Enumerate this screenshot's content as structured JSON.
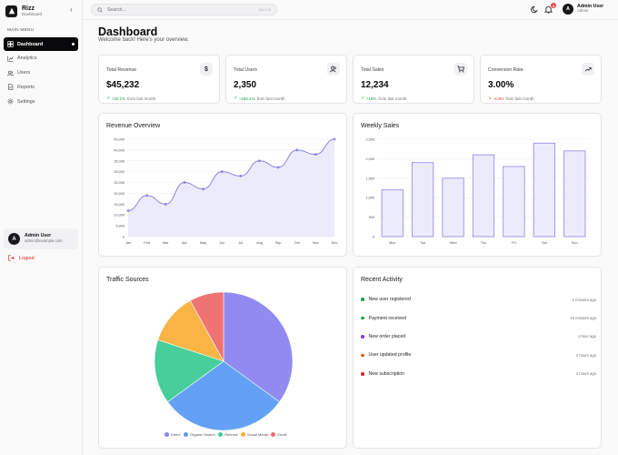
{
  "brand": {
    "name": "Rizz",
    "subtitle": "Dashboard"
  },
  "sidebar": {
    "section_label": "MAIN MENU",
    "items": [
      {
        "label": "Dashboard",
        "icon": "dashboard-icon",
        "active": true
      },
      {
        "label": "Analytics",
        "icon": "analytics-icon",
        "active": false
      },
      {
        "label": "Users",
        "icon": "users-icon",
        "active": false
      },
      {
        "label": "Reports",
        "icon": "reports-icon",
        "active": false
      },
      {
        "label": "Settings",
        "icon": "settings-icon",
        "active": false
      }
    ],
    "user": {
      "initial": "A",
      "name": "Admin User",
      "email": "admin@example.com"
    },
    "logout_label": "Logout"
  },
  "header": {
    "search_placeholder": "Search...",
    "search_shortcut": "Ctrl + K",
    "notification_count": "3",
    "user": {
      "initial": "A",
      "name": "Admin User",
      "role": "Admin"
    }
  },
  "page": {
    "title": "Dashboard",
    "subtitle": "Welcome back! Here's your overview."
  },
  "stats": [
    {
      "label": "Total Revenue",
      "value": "$45,232",
      "change": "+20.1%",
      "direction": "up",
      "suffix": "from last month",
      "icon": "dollar-icon"
    },
    {
      "label": "Total Users",
      "value": "2,350",
      "change": "+180.1%",
      "direction": "up",
      "suffix": "from last month",
      "icon": "users-icon"
    },
    {
      "label": "Total Sales",
      "value": "12,234",
      "change": "+19%",
      "direction": "up",
      "suffix": "from last month",
      "icon": "cart-icon"
    },
    {
      "label": "Conversion Rate",
      "value": "3.00%",
      "change": "-4.3%",
      "direction": "down",
      "suffix": "from last month",
      "icon": "trending-up-icon"
    }
  ],
  "colors": {
    "accent": "#8b85e6",
    "accent_fill": "#ecebfb",
    "up": "#16a34a",
    "down": "#dc2626"
  },
  "panels": {
    "revenue_title": "Revenue Overview",
    "weekly_title": "Weekly Sales",
    "traffic_title": "Traffic Sources",
    "activity_title": "Recent Activity"
  },
  "chart_data": [
    {
      "type": "area",
      "title": "Revenue Overview",
      "categories": [
        "Jan",
        "Feb",
        "Mar",
        "Apr",
        "May",
        "Jun",
        "Jul",
        "Aug",
        "Sep",
        "Oct",
        "Nov",
        "Dec"
      ],
      "values": [
        12000,
        19000,
        15000,
        25000,
        22000,
        30000,
        28000,
        35000,
        32000,
        40000,
        38000,
        45000
      ],
      "ylim": [
        0,
        45000
      ],
      "yticks": [
        "0",
        "5,000",
        "10,000",
        "15,000",
        "20,000",
        "25,000",
        "30,000",
        "35,000",
        "40,000",
        "45,000"
      ],
      "grid": true
    },
    {
      "type": "bar",
      "title": "Weekly Sales",
      "categories": [
        "Mon",
        "Tue",
        "Wed",
        "Thu",
        "Fri",
        "Sat",
        "Sun"
      ],
      "values": [
        1200,
        1900,
        1500,
        2100,
        1800,
        2400,
        2200
      ],
      "ylim": [
        0,
        2500
      ],
      "yticks": [
        "0",
        "500",
        "1,000",
        "1,500",
        "2,000",
        "2,500"
      ],
      "grid": true
    },
    {
      "type": "pie",
      "title": "Traffic Sources",
      "categories": [
        "Direct",
        "Organic Search",
        "Referral",
        "Social Media",
        "Email"
      ],
      "values": [
        35,
        30,
        15,
        12,
        8
      ],
      "colors": [
        "#8b85f0",
        "#5b9cf6",
        "#3ecb95",
        "#f8b13c",
        "#ef6b6b"
      ],
      "legend": "bottom"
    }
  ],
  "activity": [
    {
      "text": "New user registered",
      "time": "2 minutes ago",
      "color": "#16a34a"
    },
    {
      "text": "Payment received",
      "time": "15 minutes ago",
      "color": "#16a34a"
    },
    {
      "text": "New order placed",
      "time": "1 hour ago",
      "color": "#9333ea"
    },
    {
      "text": "User updated profile",
      "time": "2 hours ago",
      "color": "#ea580c"
    },
    {
      "text": "New subscription",
      "time": "3 hours ago",
      "color": "#dc2626"
    }
  ]
}
